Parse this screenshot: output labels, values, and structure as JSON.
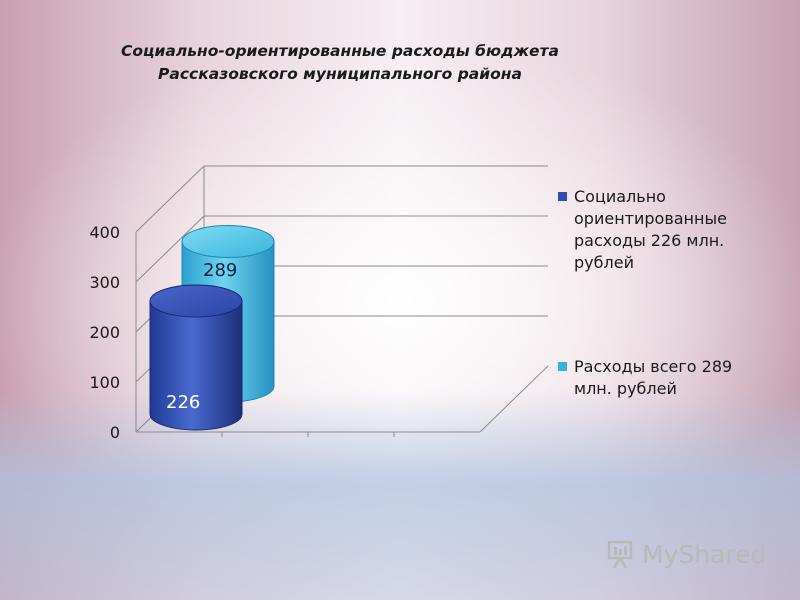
{
  "title": {
    "line1": "Социально-ориентированные расходы бюджета",
    "line2": "Рассказовского муниципального района"
  },
  "chart_data": {
    "type": "bar",
    "subtype": "3d-cylinder",
    "title": "Социально-ориентированные расходы бюджета Рассказовского муниципального района",
    "ylim": [
      0,
      400
    ],
    "yticks": [
      "0",
      "100",
      "200",
      "300",
      "400"
    ],
    "grid": true,
    "legend_position": "right",
    "series": [
      {
        "name": "Социально ориентированные расходы 226 млн. рублей",
        "value": 226,
        "label": "226",
        "color": "#2e4db0"
      },
      {
        "name": "Расходы всего 289 млн. рублей",
        "value": 289,
        "label": "289",
        "color": "#36b4dc"
      }
    ]
  },
  "watermark": {
    "text": "MyShared"
  }
}
